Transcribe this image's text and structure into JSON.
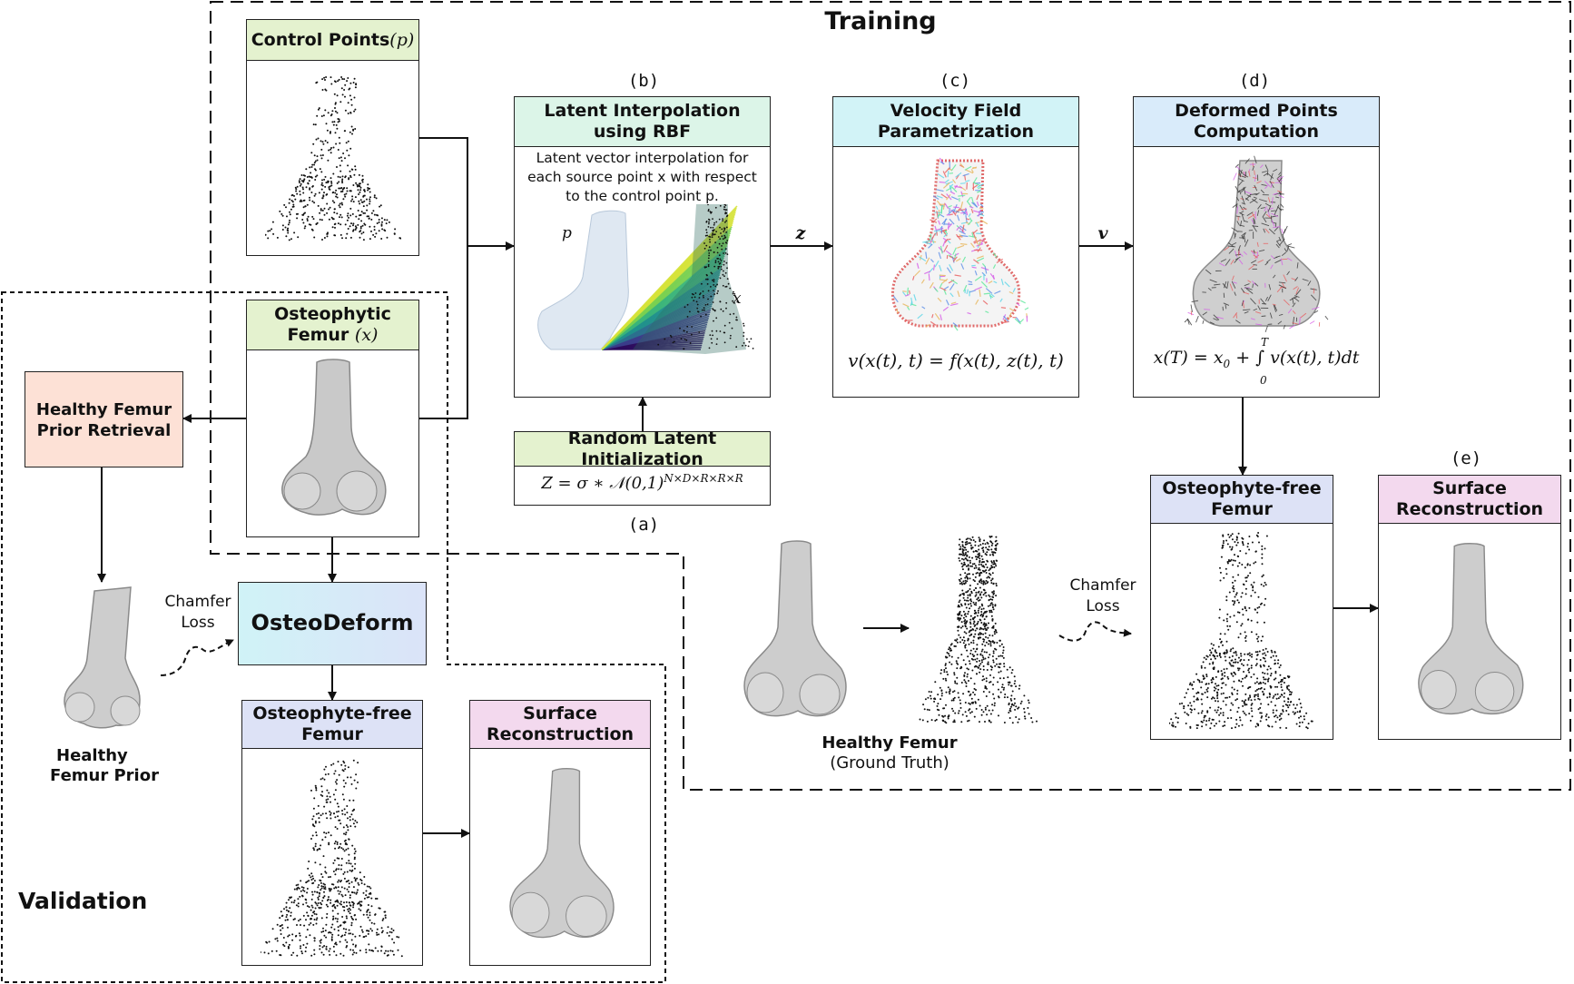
{
  "regions": {
    "training_title": "Training",
    "validation_title": "Validation"
  },
  "tags": {
    "a": "(a)",
    "b": "(b)",
    "c": "(c)",
    "d": "(d)",
    "e": "(e)"
  },
  "control_points": {
    "title_text": "Control Points ",
    "title_sym": "(p)"
  },
  "osteophytic": {
    "title_line1": "Osteophytic",
    "title_line2_text": "Femur ",
    "title_line2_sym": "(x)"
  },
  "latent_interp": {
    "title": "Latent Interpolation using RBF",
    "desc": "Latent vector interpolation for each source point x with respect to the control point p.",
    "label_p": "p",
    "label_x": "x"
  },
  "random_init": {
    "title": "Random Latent Initialization",
    "formula": "Z = σ ∗ 𝒩(0,1)",
    "formula_sup": "N×D×R×R×R"
  },
  "velocity": {
    "title": "Velocity Field Parametrization",
    "formula": "v(x(t), t) = f(x(t), z(t), t)"
  },
  "deformed": {
    "title": "Deformed Points Computation",
    "formula_lhs": "x(T) = x",
    "formula_sub": "0",
    "formula_rhs": " + ∫ v(x(t), t)dt",
    "int_upper": "T",
    "int_lower": "0"
  },
  "arrow_labels": {
    "z": "z",
    "v": "v"
  },
  "train_free": {
    "title": "Osteophyte-free Femur"
  },
  "train_surface": {
    "title": "Surface Reconstruction"
  },
  "healthy_gt": {
    "line1": "Healthy  Femur",
    "line2": "(Ground Truth)"
  },
  "chamfer_train": {
    "line1": "Chamfer",
    "line2": "Loss"
  },
  "prior_retrieval": {
    "title": "Healthy Femur Prior Retrieval"
  },
  "prior": {
    "line1": "Healthy",
    "line2": "Femur Prior"
  },
  "chamfer_val": {
    "line1": "Chamfer",
    "line2": "Loss"
  },
  "osteodeform": {
    "title": "OsteoDeform"
  },
  "val_free": {
    "title": "Osteophyte-free Femur"
  },
  "val_surface": {
    "title": "Surface Reconstruction"
  },
  "colors": {
    "green": "#e4f2cf",
    "mint": "#dcf5e8",
    "cyan": "#d2f3f7",
    "sky": "#d9ebfa",
    "lavender": "#dde2f6",
    "pink": "#f3d9ee",
    "peach": "#fde1d6",
    "bone": "#cfcfcf"
  },
  "icons": [
    "femur-mesh-icon",
    "point-cloud-icon",
    "velocity-field-icon",
    "rbf-interpolation-icon"
  ]
}
